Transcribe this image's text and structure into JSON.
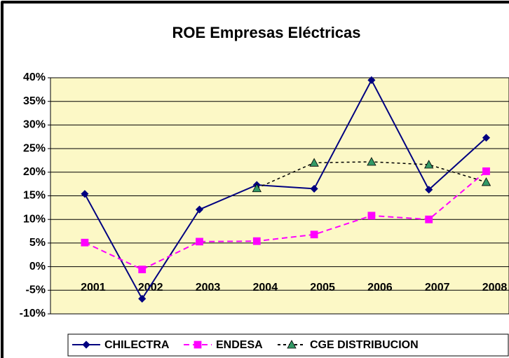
{
  "chart_data": {
    "type": "line",
    "title": "ROE Empresas Eléctricas",
    "categories": [
      "2001",
      "2002",
      "2003",
      "2004",
      "2005",
      "2006",
      "2007",
      "2008"
    ],
    "series": [
      {
        "name": "CHILECTRA",
        "color": "#000080",
        "marker": "diamond",
        "values": [
          15.4,
          -6.8,
          12.1,
          17.3,
          16.5,
          39.5,
          16.3,
          27.3
        ]
      },
      {
        "name": "ENDESA",
        "color": "#ff00ff",
        "marker": "square",
        "dashed": true,
        "values": [
          5.1,
          -0.6,
          5.3,
          5.4,
          6.8,
          10.8,
          10.0,
          20.2
        ]
      },
      {
        "name": "CGE DISTRIBUCION",
        "color": "#000000",
        "marker_color": "#339966",
        "marker": "triangle",
        "dotted": true,
        "values": [
          null,
          null,
          null,
          16.6,
          22.0,
          22.2,
          21.6,
          17.9
        ]
      }
    ],
    "ylim": [
      -10,
      40
    ],
    "yticks": [
      {
        "value": -10,
        "label": "-10%"
      },
      {
        "value": -5,
        "label": "-5%"
      },
      {
        "value": 0,
        "label": "0%"
      },
      {
        "value": 5,
        "label": "5%"
      },
      {
        "value": 10,
        "label": "10%"
      },
      {
        "value": 15,
        "label": "15%"
      },
      {
        "value": 20,
        "label": "20%"
      },
      {
        "value": 25,
        "label": "25%"
      },
      {
        "value": 30,
        "label": "30%"
      },
      {
        "value": 35,
        "label": "35%"
      },
      {
        "value": 40,
        "label": "40%"
      }
    ],
    "grid": true,
    "legend": "bottom",
    "plot_background": "#fcf8c6"
  }
}
